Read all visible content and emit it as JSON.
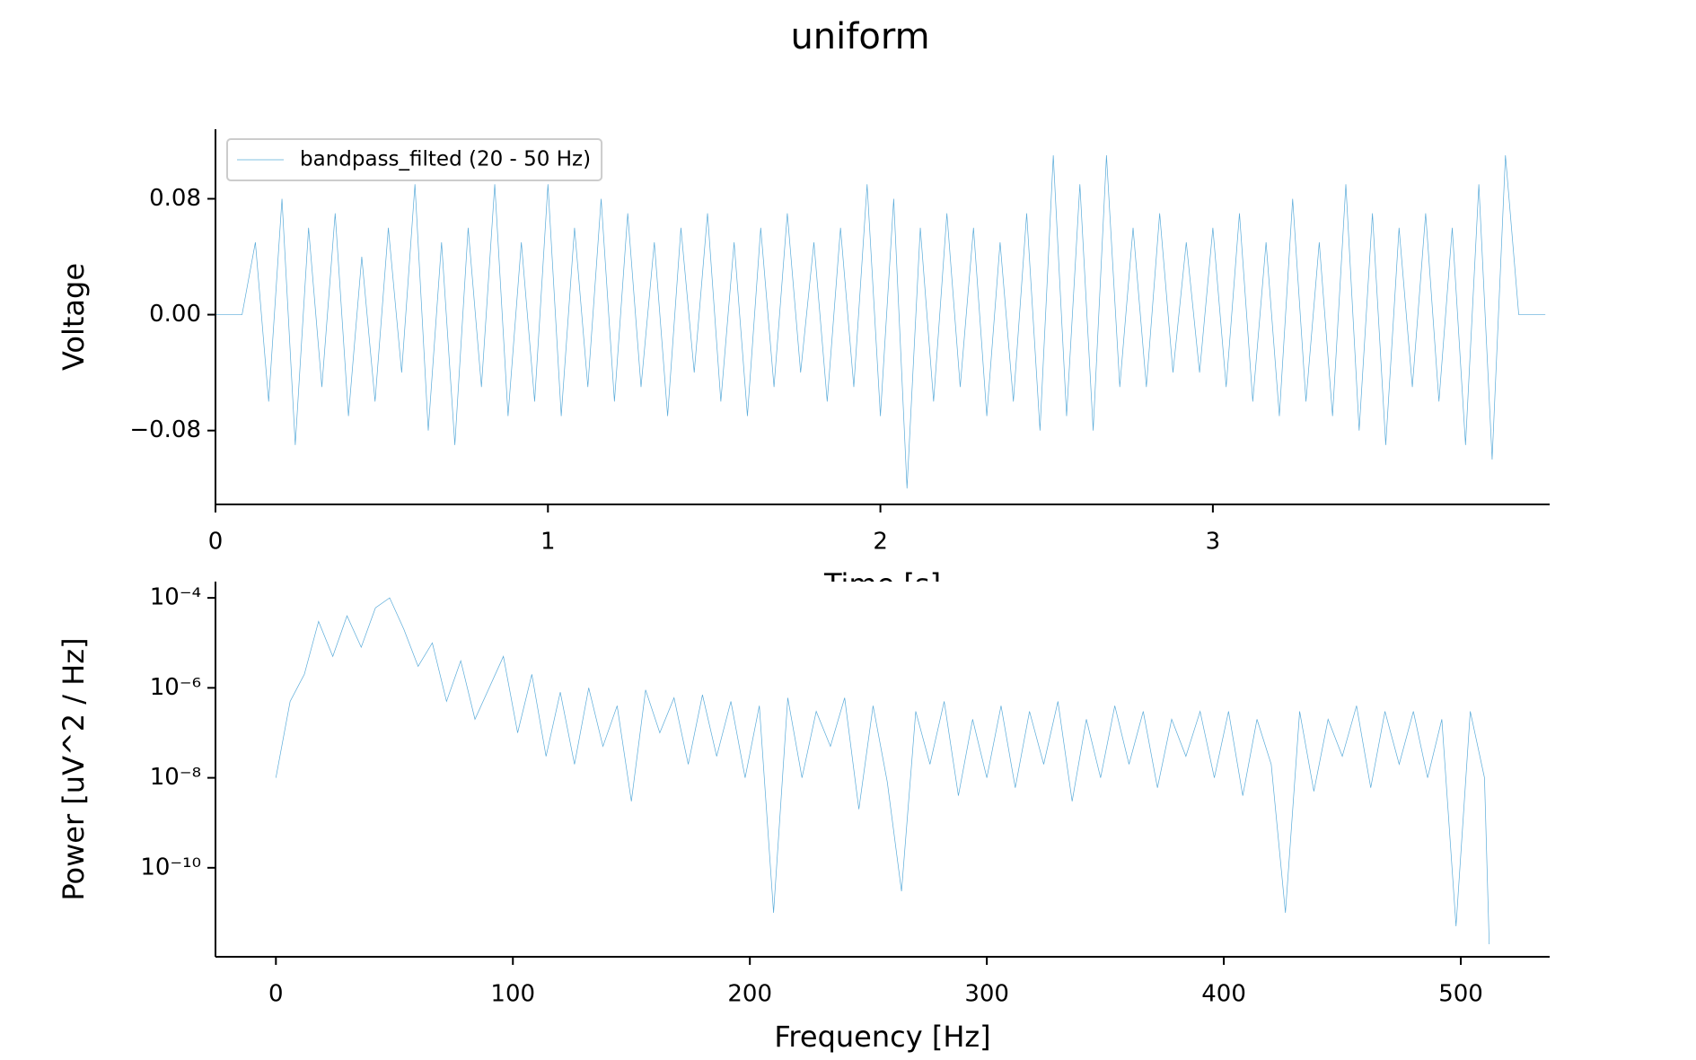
{
  "title": "uniform",
  "chart_data": [
    {
      "type": "line",
      "xlabel": "Time [s]",
      "ylabel": "Voltage",
      "xlim": [
        0,
        4.013
      ],
      "ylim": [
        -0.131,
        0.128
      ],
      "xticks": [
        0,
        1,
        2,
        3
      ],
      "yticks": [
        {
          "value": -0.08,
          "label": "−0.08"
        },
        {
          "value": 0,
          "label": "0.00"
        },
        {
          "value": 0.08,
          "label": "0.08"
        }
      ],
      "legend": "upper left",
      "x": [
        0,
        0.08,
        0.12,
        0.16,
        0.2,
        0.24,
        0.28,
        0.32,
        0.36,
        0.4,
        0.44,
        0.48,
        0.52,
        0.56,
        0.6,
        0.64,
        0.68,
        0.72,
        0.76,
        0.8,
        0.84,
        0.88,
        0.92,
        0.96,
        1,
        1.04,
        1.08,
        1.12,
        1.16,
        1.2,
        1.24,
        1.28,
        1.32,
        1.36,
        1.4,
        1.44,
        1.48,
        1.52,
        1.56,
        1.6,
        1.64,
        1.68,
        1.72,
        1.76,
        1.8,
        1.84,
        1.88,
        1.92,
        1.96,
        2,
        2.04,
        2.08,
        2.12,
        2.16,
        2.2,
        2.24,
        2.28,
        2.32,
        2.36,
        2.4,
        2.44,
        2.48,
        2.52,
        2.56,
        2.6,
        2.64,
        2.68,
        2.72,
        2.76,
        2.8,
        2.84,
        2.88,
        2.92,
        2.96,
        3,
        3.04,
        3.08,
        3.12,
        3.16,
        3.2,
        3.24,
        3.28,
        3.32,
        3.36,
        3.4,
        3.44,
        3.48,
        3.52,
        3.56,
        3.6,
        3.64,
        3.68,
        3.72,
        3.76,
        3.8,
        3.84,
        3.88,
        3.92,
        4.0
      ],
      "series": [
        {
          "name": "bandpass_filted (20 - 50 Hz)",
          "color": "#5aabd9",
          "values": [
            0,
            0,
            0.05,
            -0.06,
            0.08,
            -0.09,
            0.06,
            -0.05,
            0.07,
            -0.07,
            0.04,
            -0.06,
            0.06,
            -0.04,
            0.09,
            -0.08,
            0.05,
            -0.09,
            0.06,
            -0.05,
            0.09,
            -0.07,
            0.05,
            -0.06,
            0.09,
            -0.07,
            0.06,
            -0.05,
            0.08,
            -0.06,
            0.07,
            -0.05,
            0.05,
            -0.07,
            0.06,
            -0.04,
            0.07,
            -0.06,
            0.05,
            -0.07,
            0.06,
            -0.05,
            0.07,
            -0.04,
            0.05,
            -0.06,
            0.06,
            -0.05,
            0.09,
            -0.07,
            0.08,
            -0.12,
            0.06,
            -0.06,
            0.07,
            -0.05,
            0.06,
            -0.07,
            0.05,
            -0.06,
            0.07,
            -0.08,
            0.11,
            -0.07,
            0.09,
            -0.08,
            0.11,
            -0.05,
            0.06,
            -0.05,
            0.07,
            -0.04,
            0.05,
            -0.04,
            0.06,
            -0.05,
            0.07,
            -0.06,
            0.05,
            -0.07,
            0.08,
            -0.06,
            0.05,
            -0.07,
            0.09,
            -0.08,
            0.07,
            -0.09,
            0.06,
            -0.05,
            0.07,
            -0.06,
            0.06,
            -0.09,
            0.09,
            -0.1,
            0.11,
            0,
            0
          ]
        }
      ]
    },
    {
      "type": "line",
      "xlabel": "Frequency [Hz]",
      "ylabel": "Power [uV^2 / Hz]",
      "yscale": "log",
      "xlim": [
        -25.5,
        537.5
      ],
      "ylim": [
        1.05e-12,
        0.00023
      ],
      "xticks": [
        0,
        100,
        200,
        300,
        400,
        500
      ],
      "yticks": [
        {
          "value": 1e-10,
          "label": "10⁻¹⁰"
        },
        {
          "value": 1e-08,
          "label": "10⁻⁸"
        },
        {
          "value": 1e-06,
          "label": "10⁻⁶"
        },
        {
          "value": 0.0001,
          "label": "10⁻⁴"
        }
      ],
      "x": [
        0,
        6,
        12,
        18,
        24,
        30,
        36,
        42,
        48,
        54,
        60,
        66,
        72,
        78,
        84,
        90,
        96,
        102,
        108,
        114,
        120,
        126,
        132,
        138,
        144,
        150,
        156,
        162,
        168,
        174,
        180,
        186,
        192,
        198,
        204,
        210,
        216,
        222,
        228,
        234,
        240,
        246,
        252,
        258,
        264,
        270,
        276,
        282,
        288,
        294,
        300,
        306,
        312,
        318,
        324,
        330,
        336,
        342,
        348,
        354,
        360,
        366,
        372,
        378,
        384,
        390,
        396,
        402,
        408,
        414,
        420,
        426,
        432,
        438,
        444,
        450,
        456,
        462,
        468,
        474,
        480,
        486,
        492,
        498,
        504,
        510,
        512
      ],
      "series": [
        {
          "color": "#5aabd9",
          "values": [
            1e-08,
            5e-07,
            2e-06,
            3e-05,
            5e-06,
            4e-05,
            8e-06,
            6e-05,
            0.0001,
            2e-05,
            3e-06,
            1e-05,
            5e-07,
            4e-06,
            2e-07,
            1e-06,
            5e-06,
            1e-07,
            2e-06,
            3e-08,
            8e-07,
            2e-08,
            1e-06,
            5e-08,
            4e-07,
            3e-09,
            9e-07,
            1e-07,
            6e-07,
            2e-08,
            7e-07,
            3e-08,
            5e-07,
            1e-08,
            4e-07,
            1e-11,
            6e-07,
            1e-08,
            3e-07,
            5e-08,
            6e-07,
            2e-09,
            4e-07,
            8e-09,
            3e-11,
            3e-07,
            2e-08,
            5e-07,
            4e-09,
            2e-07,
            1e-08,
            4e-07,
            6e-09,
            3e-07,
            2e-08,
            5e-07,
            3e-09,
            2e-07,
            1e-08,
            4e-07,
            2e-08,
            3e-07,
            6e-09,
            2e-07,
            3e-08,
            3e-07,
            1e-08,
            3e-07,
            4e-09,
            2e-07,
            2e-08,
            1e-11,
            3e-07,
            5e-09,
            2e-07,
            3e-08,
            4e-07,
            6e-09,
            3e-07,
            2e-08,
            3e-07,
            1e-08,
            2e-07,
            5e-12,
            3e-07,
            1e-08,
            2e-12
          ]
        }
      ]
    }
  ]
}
